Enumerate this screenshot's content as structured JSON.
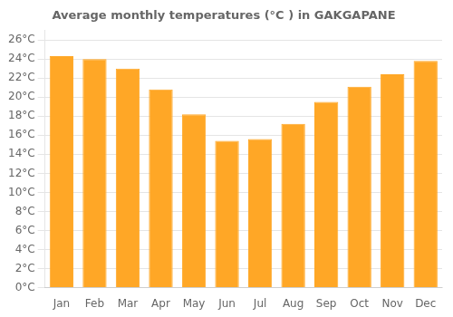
{
  "chart_data": {
    "type": "bar",
    "title": "Average monthly temperatures (°C ) in GAKGAPANE",
    "categories": [
      "Jan",
      "Feb",
      "Mar",
      "Apr",
      "May",
      "Jun",
      "Jul",
      "Aug",
      "Sep",
      "Oct",
      "Nov",
      "Dec"
    ],
    "values": [
      24.3,
      24.0,
      23.0,
      20.8,
      18.2,
      15.4,
      15.6,
      17.2,
      19.5,
      21.1,
      22.4,
      23.8
    ],
    "color": "#FFA726",
    "ylim": [
      0,
      27
    ],
    "yticks": [
      {
        "value": 0,
        "label": "0°C"
      },
      {
        "value": 2,
        "label": "2°C"
      },
      {
        "value": 4,
        "label": "4°C"
      },
      {
        "value": 6,
        "label": "6°C"
      },
      {
        "value": 8,
        "label": "8°C"
      },
      {
        "value": 10,
        "label": "10°C"
      },
      {
        "value": 12,
        "label": "12°C"
      },
      {
        "value": 14,
        "label": "14°C"
      },
      {
        "value": 16,
        "label": "16°C"
      },
      {
        "value": 18,
        "label": "18°C"
      },
      {
        "value": 20,
        "label": "20°C"
      },
      {
        "value": 22,
        "label": "22°C"
      },
      {
        "value": 24,
        "label": "24°C"
      },
      {
        "value": 26,
        "label": "26°C"
      }
    ],
    "grid": true
  }
}
